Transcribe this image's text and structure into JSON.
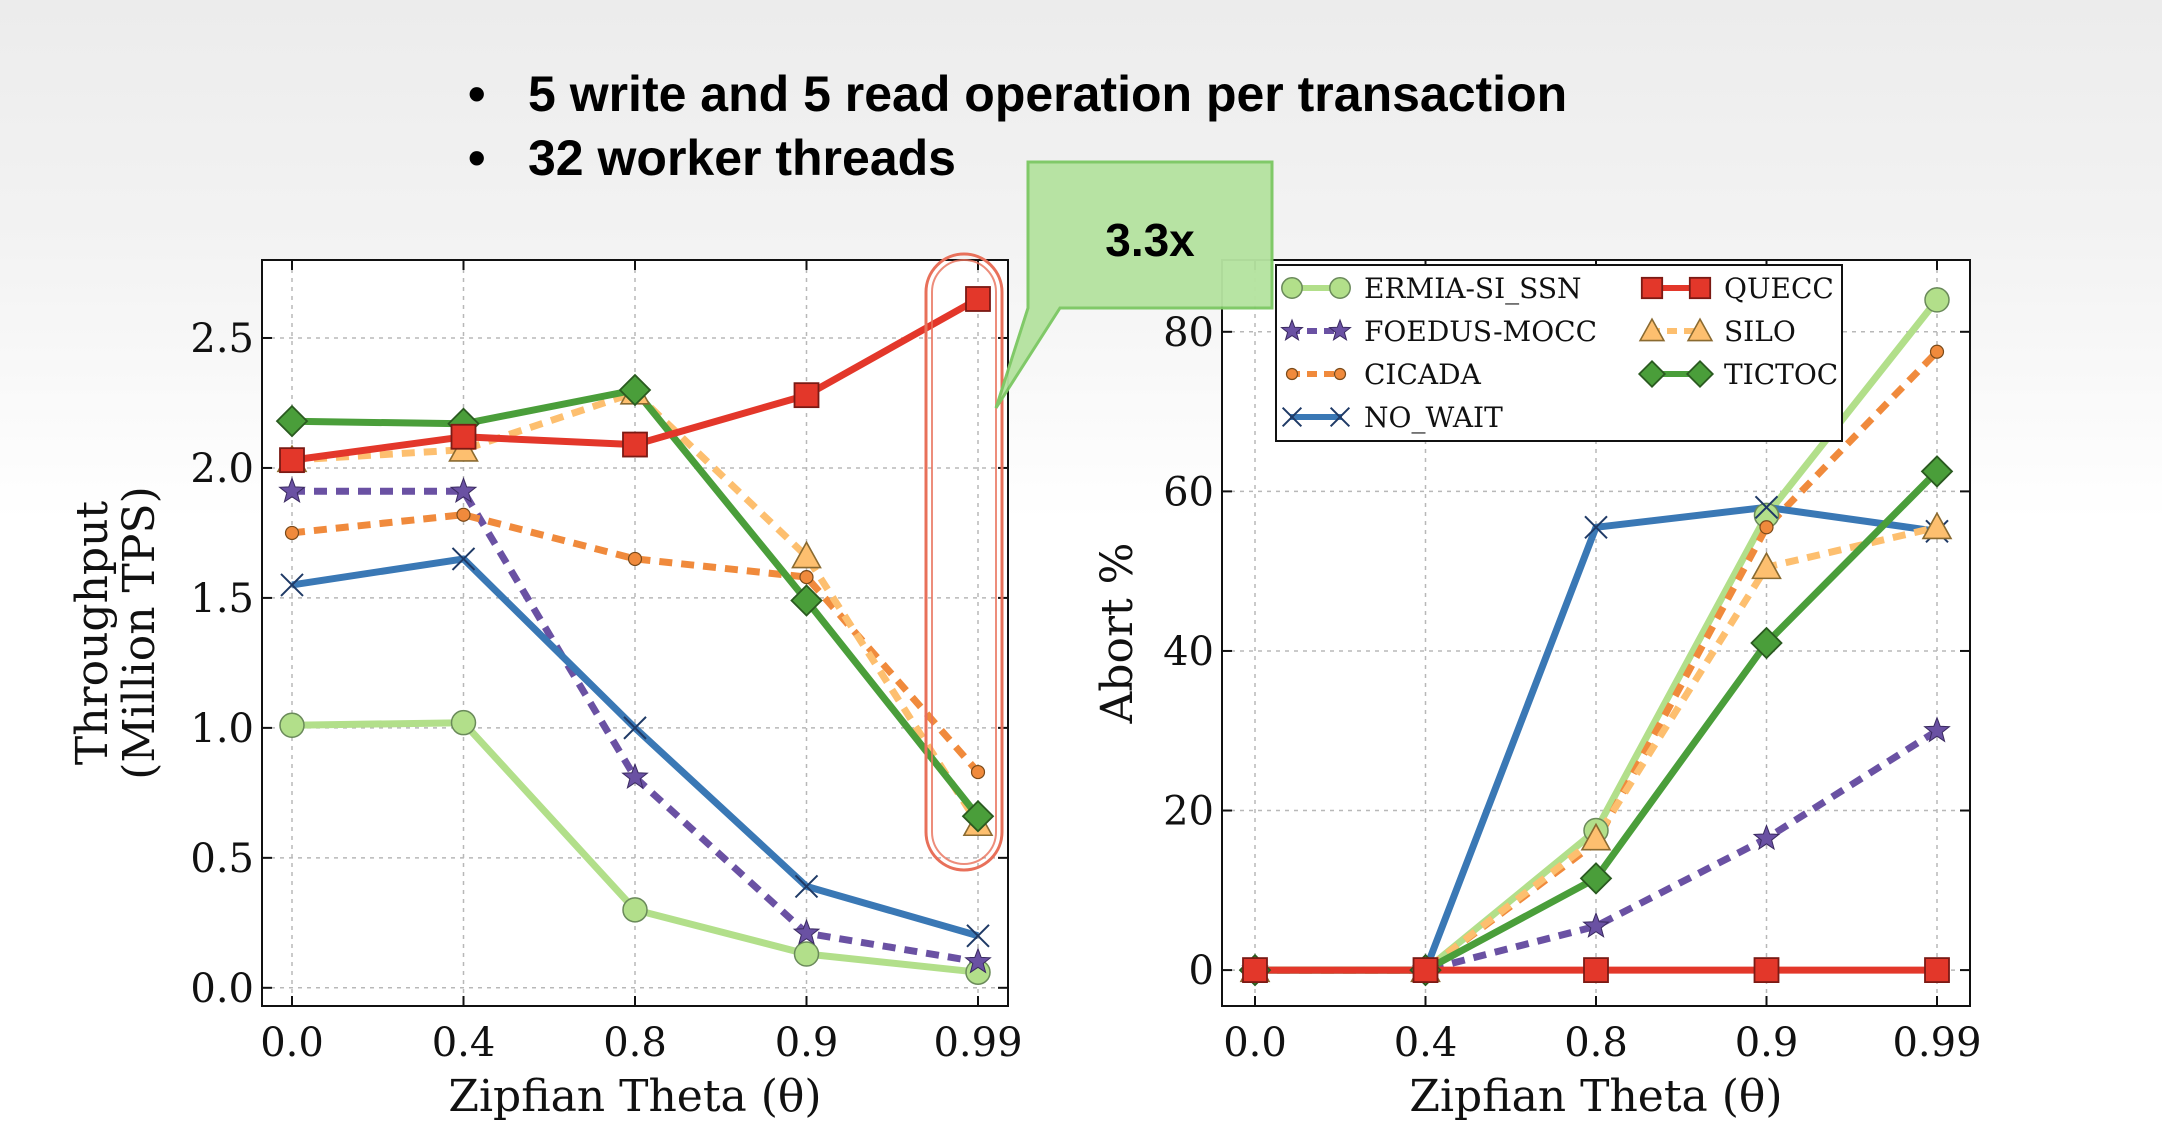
{
  "bullets": [
    "5 write and 5 read operation per transaction",
    "32 worker threads"
  ],
  "callout": {
    "text": "3.3x",
    "fill": "#b5e3a0",
    "stroke": "#7cc863"
  },
  "highlight_color": "#e8705a",
  "chart_data": [
    {
      "type": "line",
      "title": "",
      "xlabel": "Zipfian Theta (θ)",
      "ylabel": [
        "Throughput",
        "(Million TPS)"
      ],
      "categories": [
        "0.0",
        "0.4",
        "0.8",
        "0.9",
        "0.99"
      ],
      "ylim": [
        -0.07,
        2.8
      ],
      "yticks": [
        "0.0",
        "0.5",
        "1.0",
        "1.5",
        "2.0",
        "2.5"
      ],
      "ytick_values": [
        0,
        0.5,
        1.0,
        1.5,
        2.0,
        2.5
      ],
      "grid": true,
      "series": [
        {
          "name": "ERMIA-SI_SSN",
          "values": [
            1.01,
            1.02,
            0.3,
            0.13,
            0.06
          ],
          "color": "#b2df8a",
          "marker": "circle",
          "dash": false
        },
        {
          "name": "FOEDUS-MOCC",
          "values": [
            1.91,
            1.91,
            0.81,
            0.21,
            0.1
          ],
          "color": "#6a51a3",
          "marker": "star",
          "dash": true
        },
        {
          "name": "CICADA",
          "values": [
            1.75,
            1.82,
            1.65,
            1.58,
            0.83
          ],
          "color": "#f08a3c",
          "marker": "smallcircle",
          "dash": true
        },
        {
          "name": "NO_WAIT",
          "values": [
            1.55,
            1.65,
            1.0,
            0.39,
            0.2
          ],
          "color": "#3a78b5",
          "marker": "x",
          "dash": false
        },
        {
          "name": "SILO",
          "values": [
            2.03,
            2.07,
            2.29,
            1.66,
            0.63
          ],
          "color": "#fdbf6f",
          "marker": "triangle",
          "dash": true
        },
        {
          "name": "TICTOC",
          "values": [
            2.18,
            2.17,
            2.3,
            1.49,
            0.66
          ],
          "color": "#4a9e3a",
          "marker": "diamond",
          "dash": false
        },
        {
          "name": "QUECC",
          "values": [
            2.03,
            2.12,
            2.09,
            2.28,
            2.65
          ],
          "color": "#e3372a",
          "marker": "square",
          "dash": false
        }
      ]
    },
    {
      "type": "line",
      "title": "",
      "xlabel": "Zipfian Theta (θ)",
      "ylabel": [
        "Abort %"
      ],
      "categories": [
        "0.0",
        "0.4",
        "0.8",
        "0.9",
        "0.99"
      ],
      "ylim": [
        -4.5,
        89
      ],
      "yticks": [
        "0",
        "20",
        "40",
        "60",
        "80"
      ],
      "ytick_values": [
        0,
        20,
        40,
        60,
        80
      ],
      "grid": true,
      "legend": "top-left",
      "series": [
        {
          "name": "ERMIA-SI_SSN",
          "values": [
            0,
            0,
            17.5,
            57,
            84
          ],
          "color": "#b2df8a",
          "marker": "circle",
          "dash": false
        },
        {
          "name": "FOEDUS-MOCC",
          "values": [
            0,
            0,
            5.5,
            16.5,
            30
          ],
          "color": "#6a51a3",
          "marker": "star",
          "dash": true
        },
        {
          "name": "CICADA",
          "values": [
            0,
            0,
            16,
            55.5,
            77.5
          ],
          "color": "#f08a3c",
          "marker": "smallcircle",
          "dash": true
        },
        {
          "name": "NO_WAIT",
          "values": [
            0,
            0,
            55.5,
            58,
            55
          ],
          "color": "#3a78b5",
          "marker": "x",
          "dash": false
        },
        {
          "name": "SILO",
          "values": [
            0,
            0,
            16.5,
            50.5,
            55.5
          ],
          "color": "#fdbf6f",
          "marker": "triangle",
          "dash": true
        },
        {
          "name": "TICTOC",
          "values": [
            0,
            0,
            11.5,
            41,
            62.5
          ],
          "color": "#4a9e3a",
          "marker": "diamond",
          "dash": false
        },
        {
          "name": "QUECC",
          "values": [
            0,
            0,
            0,
            0,
            0
          ],
          "color": "#e3372a",
          "marker": "square",
          "dash": false
        }
      ],
      "legend_entries": [
        {
          "name": "ERMIA-SI_SSN",
          "series": 0
        },
        {
          "name": "QUECC",
          "series": 6
        },
        {
          "name": "FOEDUS-MOCC",
          "series": 1
        },
        {
          "name": "SILO",
          "series": 4
        },
        {
          "name": "CICADA",
          "series": 2
        },
        {
          "name": "TICTOC",
          "series": 5
        },
        {
          "name": "NO_WAIT",
          "series": 3
        }
      ]
    }
  ]
}
